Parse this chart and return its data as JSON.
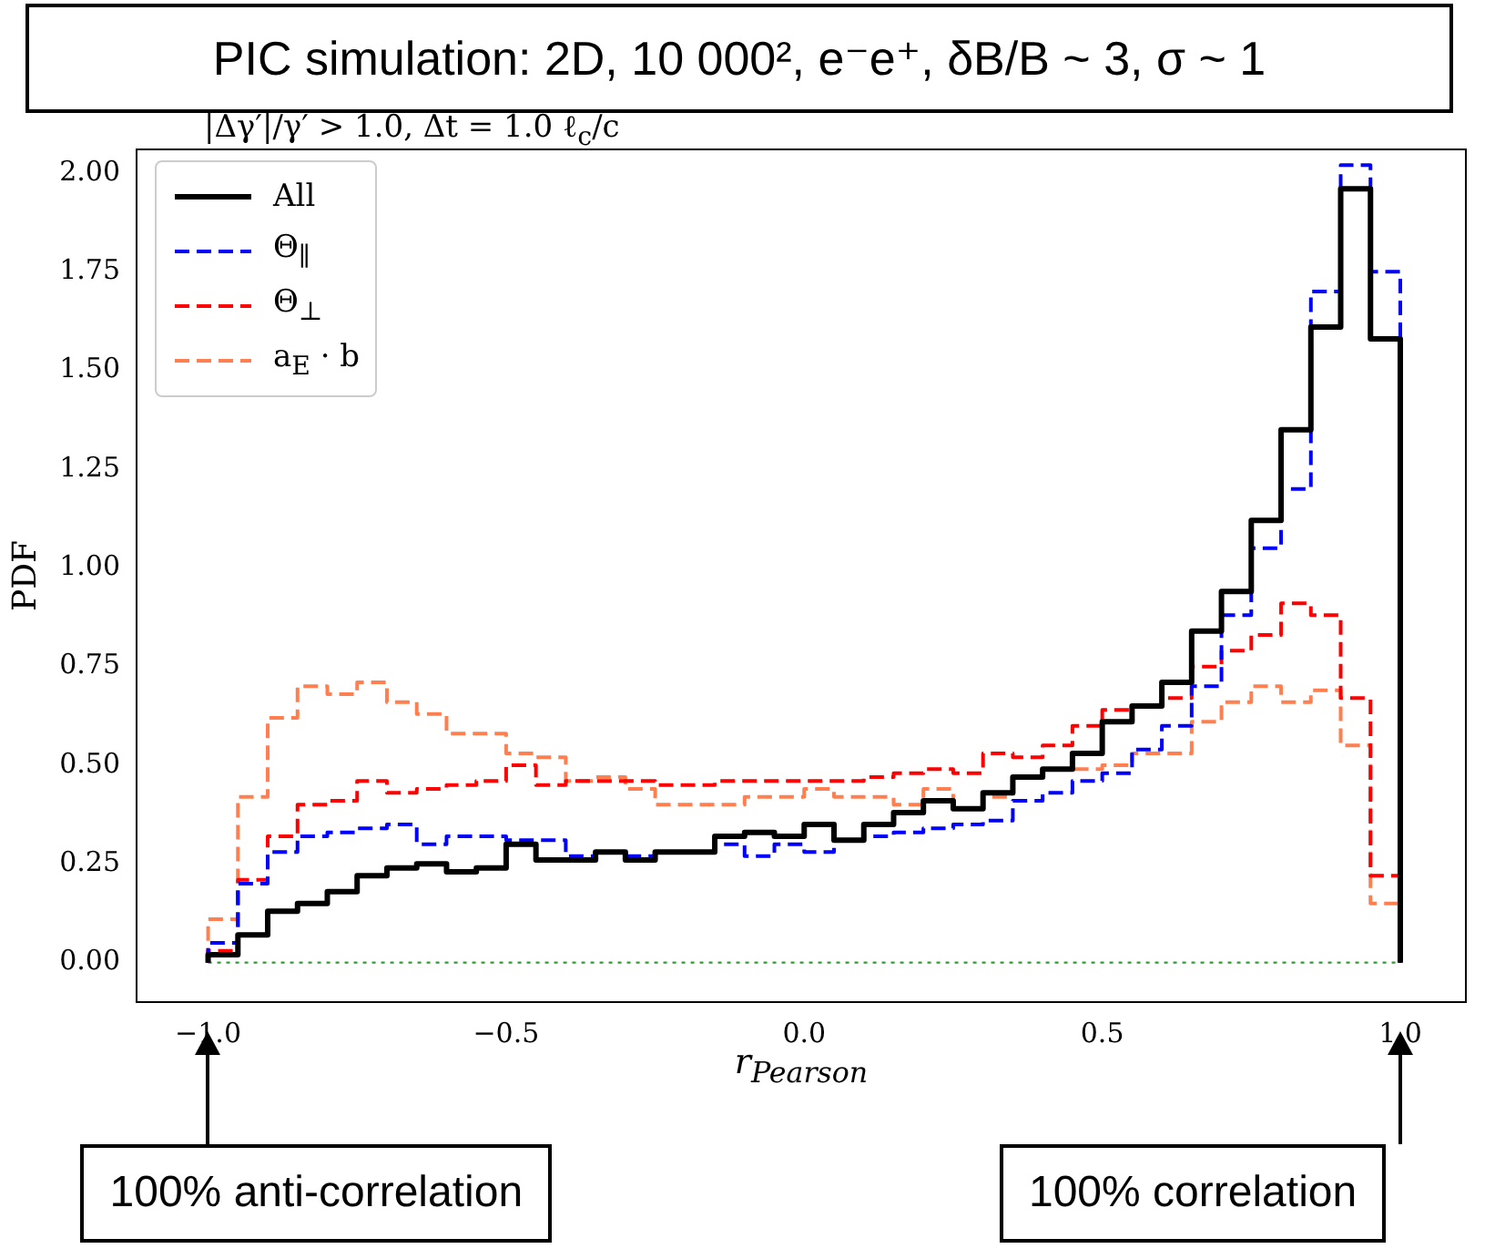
{
  "chart_data": {
    "type": "histogram",
    "title": "PIC simulation: 2D, 10 000², e⁻e⁺, δB/B ~ 3, σ ~ 1",
    "subtitle": "|Δγ′|/γ′ > 1.0, Δt = 1.0 ℓ$_{c}$/c",
    "xlabel": "r$_{Pearson}$",
    "ylabel": "PDF",
    "bins": [
      -1.0,
      -0.95,
      -0.9,
      -0.85,
      -0.8,
      -0.75,
      -0.7,
      -0.65,
      -0.6,
      -0.55,
      -0.5,
      -0.45,
      -0.4,
      -0.35,
      -0.3,
      -0.25,
      -0.2,
      -0.15,
      -0.1,
      -0.05,
      0.0,
      0.05,
      0.1,
      0.15,
      0.2,
      0.25,
      0.3,
      0.35,
      0.4,
      0.45,
      0.5,
      0.55,
      0.6,
      0.65,
      0.7,
      0.75,
      0.8,
      0.85,
      0.9,
      0.95,
      1.0
    ],
    "series": [
      {
        "name": "All",
        "color": "#000000",
        "line_style": "solid",
        "values": [
          0.02,
          0.07,
          0.13,
          0.15,
          0.18,
          0.22,
          0.24,
          0.25,
          0.23,
          0.24,
          0.3,
          0.26,
          0.26,
          0.28,
          0.26,
          0.28,
          0.28,
          0.32,
          0.33,
          0.32,
          0.35,
          0.31,
          0.35,
          0.38,
          0.41,
          0.39,
          0.43,
          0.47,
          0.49,
          0.53,
          0.61,
          0.65,
          0.71,
          0.84,
          0.94,
          1.12,
          1.35,
          1.61,
          1.96,
          1.58
        ]
      },
      {
        "name": "Θ$_{∥}$",
        "color": "#0000ff",
        "line_style": "dashed",
        "values": [
          0.05,
          0.2,
          0.28,
          0.32,
          0.33,
          0.34,
          0.35,
          0.3,
          0.32,
          0.32,
          0.31,
          0.31,
          0.27,
          0.28,
          0.27,
          0.28,
          0.28,
          0.3,
          0.27,
          0.3,
          0.28,
          0.31,
          0.32,
          0.33,
          0.34,
          0.35,
          0.36,
          0.41,
          0.43,
          0.46,
          0.48,
          0.54,
          0.6,
          0.7,
          0.88,
          1.05,
          1.2,
          1.7,
          2.02,
          1.75
        ]
      },
      {
        "name": "Θ$_{⊥}$",
        "color": "#ff0000",
        "line_style": "dashed",
        "values": [
          0.03,
          0.21,
          0.32,
          0.4,
          0.41,
          0.46,
          0.43,
          0.44,
          0.45,
          0.46,
          0.5,
          0.45,
          0.46,
          0.46,
          0.46,
          0.45,
          0.45,
          0.46,
          0.46,
          0.46,
          0.46,
          0.46,
          0.47,
          0.48,
          0.49,
          0.48,
          0.53,
          0.52,
          0.55,
          0.6,
          0.64,
          0.65,
          0.67,
          0.75,
          0.79,
          0.83,
          0.91,
          0.88,
          0.67,
          0.22
        ]
      },
      {
        "name": "a$_{E}$ · b",
        "color": "#ff7f50",
        "line_style": "dashed",
        "values": [
          0.11,
          0.42,
          0.62,
          0.7,
          0.68,
          0.71,
          0.66,
          0.63,
          0.58,
          0.58,
          0.53,
          0.52,
          0.46,
          0.47,
          0.44,
          0.4,
          0.4,
          0.4,
          0.42,
          0.42,
          0.44,
          0.42,
          0.42,
          0.4,
          0.44,
          0.39,
          0.42,
          0.47,
          0.49,
          0.49,
          0.5,
          0.53,
          0.53,
          0.61,
          0.66,
          0.7,
          0.66,
          0.69,
          0.55,
          0.15
        ]
      }
    ],
    "xlim": [
      -1.12,
      1.11
    ],
    "ylim": [
      -0.1,
      2.06
    ],
    "xticks": [
      {
        "value": -1.0,
        "label": "−1.0"
      },
      {
        "value": -0.5,
        "label": "−0.5"
      },
      {
        "value": 0,
        "label": "0.0"
      },
      {
        "value": 0.5,
        "label": "0.5"
      },
      {
        "value": 1.0,
        "label": "1.0"
      }
    ],
    "yticks": [
      {
        "value": 0,
        "label": "0.00"
      },
      {
        "value": 0.25,
        "label": "0.25"
      },
      {
        "value": 0.5,
        "label": "0.50"
      },
      {
        "value": 0.75,
        "label": "0.75"
      },
      {
        "value": 1.0,
        "label": "1.00"
      },
      {
        "value": 1.25,
        "label": "1.25"
      },
      {
        "value": 1.5,
        "label": "1.50"
      },
      {
        "value": 1.75,
        "label": "1.75"
      },
      {
        "value": 2.0,
        "label": "2.00"
      }
    ],
    "ref_lines": [
      {
        "axis": "y",
        "value": 0,
        "color": "#2ca02c",
        "line_style": "dotted"
      }
    ],
    "grid": false,
    "legend": "top left",
    "annotations": [
      "100% anti-correlation",
      "100% correlation"
    ]
  }
}
